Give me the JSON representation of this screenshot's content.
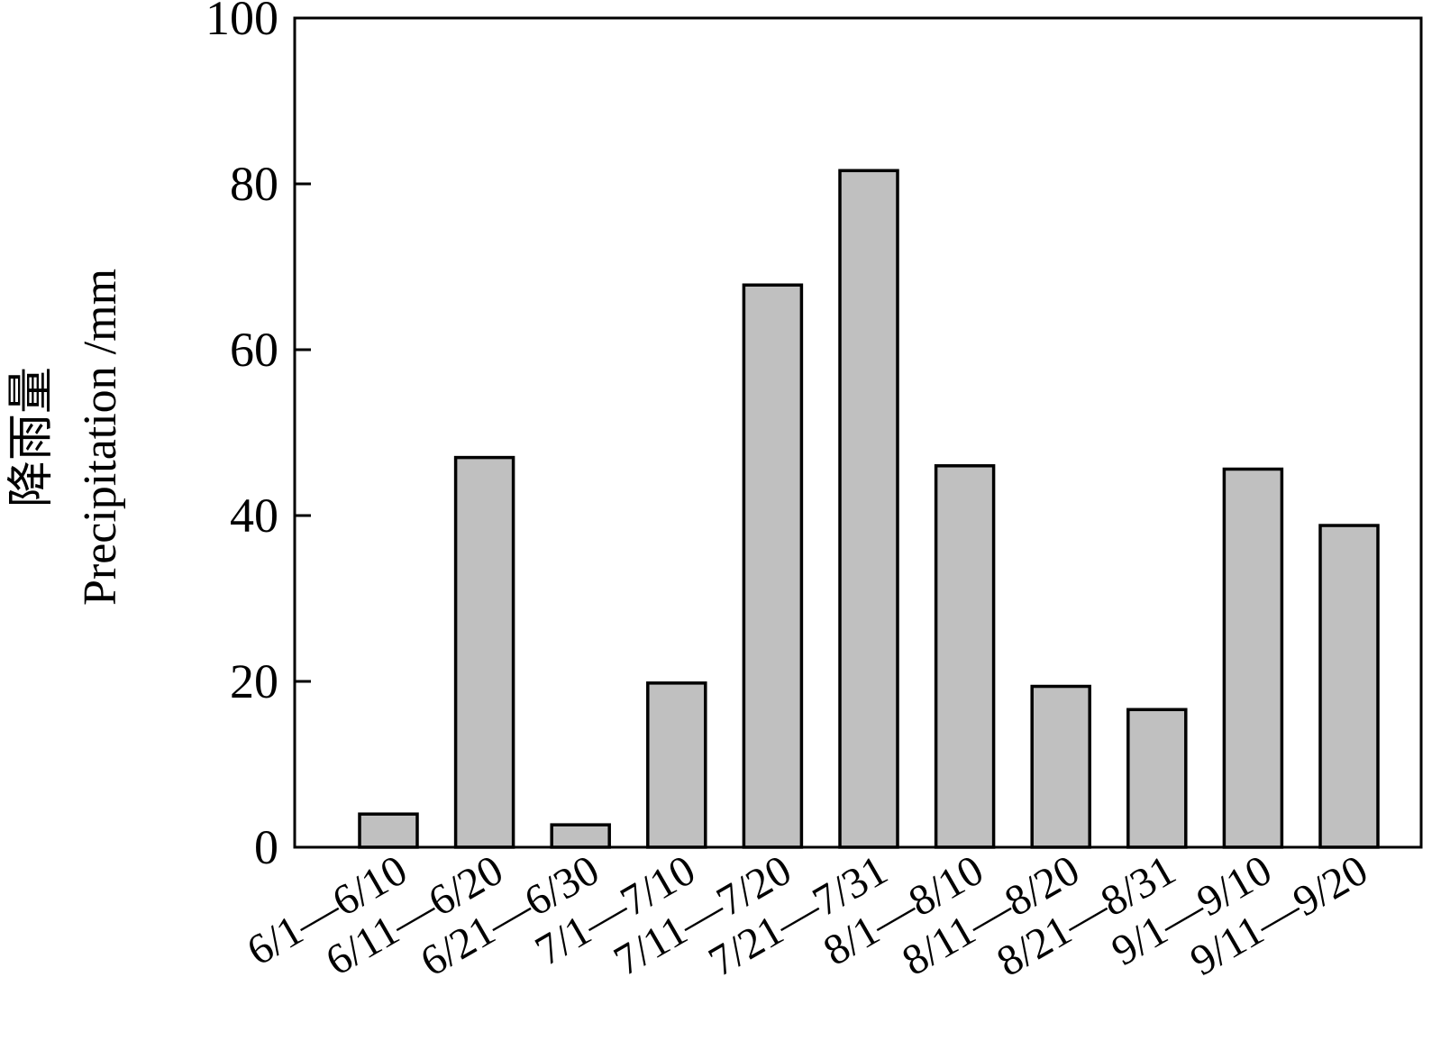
{
  "chart_data": {
    "type": "bar",
    "title": "",
    "xlabel": "",
    "ylabel_cn": "降雨量",
    "ylabel_en": "Precipitation /mm",
    "ylim": [
      0,
      100
    ],
    "yticks": [
      0,
      20,
      40,
      60,
      80,
      100
    ],
    "grid": false,
    "categories": [
      "6/1—6/10",
      "6/11—6/20",
      "6/21—6/30",
      "7/1—7/10",
      "7/11—7/20",
      "7/21—7/31",
      "8/1—8/10",
      "8/11—8/20",
      "8/21—8/31",
      "9/1—9/10",
      "9/11—9/20"
    ],
    "values": [
      4,
      47,
      2.7,
      19.8,
      67.8,
      81.6,
      46,
      19.4,
      16.6,
      45.6,
      38.8
    ],
    "bar_color": "#c0c0c0",
    "edge_color": "#000000"
  }
}
